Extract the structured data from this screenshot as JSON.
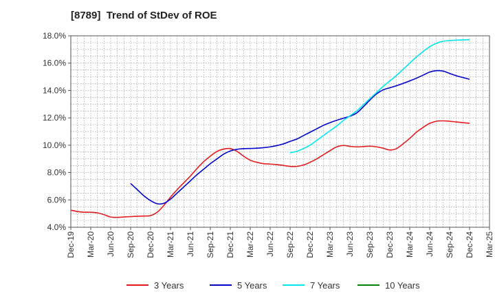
{
  "chart_data": {
    "type": "line",
    "title": "[8789]  Trend of StDev of ROE",
    "xlabel": "",
    "ylabel": "",
    "ylim": [
      4.0,
      18.0
    ],
    "y_ticks": [
      "4.0%",
      "6.0%",
      "8.0%",
      "10.0%",
      "12.0%",
      "14.0%",
      "16.0%",
      "18.0%"
    ],
    "y_tick_values": [
      4,
      6,
      8,
      10,
      12,
      14,
      16,
      18
    ],
    "x_ticks": [
      "Dec-19",
      "Mar-20",
      "Jun-20",
      "Sep-20",
      "Dec-20",
      "Mar-21",
      "Jun-21",
      "Sep-21",
      "Dec-21",
      "Mar-22",
      "Jun-22",
      "Sep-22",
      "Dec-22",
      "Mar-23",
      "Jun-23",
      "Sep-23",
      "Dec-23",
      "Mar-24",
      "Jun-24",
      "Sep-24",
      "Dec-24",
      "Mar-25"
    ],
    "grid": true,
    "legend_position": "bottom",
    "series": [
      {
        "name": "3 Years",
        "color": "#e31a1c",
        "x": [
          "Dec-19",
          "Jan-20",
          "Feb-20",
          "Mar-20",
          "Apr-20",
          "May-20",
          "Jun-20",
          "Jul-20",
          "Aug-20",
          "Sep-20",
          "Oct-20",
          "Nov-20",
          "Dec-20",
          "Jan-21",
          "Feb-21",
          "Mar-21",
          "Apr-21",
          "May-21",
          "Jun-21",
          "Jul-21",
          "Aug-21",
          "Sep-21",
          "Oct-21",
          "Nov-21",
          "Dec-21",
          "Jan-22",
          "Feb-22",
          "Mar-22",
          "Apr-22",
          "May-22",
          "Jun-22",
          "Jul-22",
          "Aug-22",
          "Sep-22",
          "Oct-22",
          "Nov-22",
          "Dec-22",
          "Jan-23",
          "Feb-23",
          "Mar-23",
          "Apr-23",
          "May-23",
          "Jun-23",
          "Jul-23",
          "Aug-23",
          "Sep-23",
          "Oct-23",
          "Nov-23",
          "Dec-23",
          "Jan-24",
          "Feb-24",
          "Mar-24",
          "Apr-24",
          "May-24",
          "Jun-24",
          "Jul-24",
          "Aug-24",
          "Sep-24",
          "Oct-24",
          "Nov-24",
          "Dec-24"
        ],
        "values": [
          5.25,
          5.15,
          5.1,
          5.1,
          5.05,
          4.92,
          4.75,
          4.72,
          4.75,
          4.78,
          4.8,
          4.82,
          4.85,
          5.1,
          5.6,
          6.2,
          6.75,
          7.25,
          7.75,
          8.3,
          8.8,
          9.2,
          9.55,
          9.72,
          9.75,
          9.55,
          9.2,
          8.9,
          8.75,
          8.65,
          8.62,
          8.58,
          8.52,
          8.45,
          8.45,
          8.55,
          8.75,
          9.0,
          9.3,
          9.6,
          9.88,
          9.98,
          9.92,
          9.88,
          9.9,
          9.93,
          9.88,
          9.78,
          9.65,
          9.75,
          10.1,
          10.5,
          10.95,
          11.3,
          11.6,
          11.75,
          11.78,
          11.75,
          11.7,
          11.65,
          11.6
        ]
      },
      {
        "name": "5 Years",
        "color": "#0000cc",
        "x": [
          "Sep-20",
          "Oct-20",
          "Nov-20",
          "Dec-20",
          "Jan-21",
          "Feb-21",
          "Mar-21",
          "Apr-21",
          "May-21",
          "Jun-21",
          "Jul-21",
          "Aug-21",
          "Sep-21",
          "Oct-21",
          "Nov-21",
          "Dec-21",
          "Jan-22",
          "Feb-22",
          "Mar-22",
          "Apr-22",
          "May-22",
          "Jun-22",
          "Jul-22",
          "Aug-22",
          "Sep-22",
          "Oct-22",
          "Nov-22",
          "Dec-22",
          "Jan-23",
          "Feb-23",
          "Mar-23",
          "Apr-23",
          "May-23",
          "Jun-23",
          "Jul-23",
          "Aug-23",
          "Sep-23",
          "Oct-23",
          "Nov-23",
          "Dec-23",
          "Jan-24",
          "Feb-24",
          "Mar-24",
          "Apr-24",
          "May-24",
          "Jun-24",
          "Jul-24",
          "Aug-24",
          "Sep-24",
          "Oct-24",
          "Nov-24",
          "Dec-24"
        ],
        "values": [
          7.2,
          6.75,
          6.3,
          5.95,
          5.72,
          5.75,
          6.05,
          6.5,
          6.95,
          7.4,
          7.85,
          8.25,
          8.65,
          9.0,
          9.35,
          9.58,
          9.7,
          9.75,
          9.76,
          9.78,
          9.82,
          9.88,
          9.97,
          10.1,
          10.28,
          10.45,
          10.7,
          10.95,
          11.2,
          11.45,
          11.65,
          11.82,
          11.97,
          12.12,
          12.35,
          12.8,
          13.3,
          13.75,
          14.05,
          14.2,
          14.35,
          14.52,
          14.7,
          14.9,
          15.12,
          15.35,
          15.45,
          15.42,
          15.25,
          15.08,
          14.95,
          14.82
        ]
      },
      {
        "name": "7 Years",
        "color": "#00e5ee",
        "x": [
          "Sep-22",
          "Oct-22",
          "Nov-22",
          "Dec-22",
          "Jan-23",
          "Feb-23",
          "Mar-23",
          "Apr-23",
          "May-23",
          "Jun-23",
          "Jul-23",
          "Aug-23",
          "Sep-23",
          "Oct-23",
          "Nov-23",
          "Dec-23",
          "Jan-24",
          "Feb-24",
          "Mar-24",
          "Apr-24",
          "May-24",
          "Jun-24",
          "Jul-24",
          "Aug-24",
          "Sep-24",
          "Oct-24",
          "Nov-24",
          "Dec-24"
        ],
        "values": [
          9.45,
          9.55,
          9.75,
          10.0,
          10.35,
          10.7,
          11.05,
          11.4,
          11.8,
          12.15,
          12.5,
          12.95,
          13.4,
          13.85,
          14.3,
          14.7,
          15.1,
          15.55,
          16.0,
          16.45,
          16.85,
          17.2,
          17.45,
          17.6,
          17.65,
          17.68,
          17.7,
          17.72
        ]
      },
      {
        "name": "10 Years",
        "color": "#008000",
        "x": [],
        "values": []
      }
    ]
  }
}
